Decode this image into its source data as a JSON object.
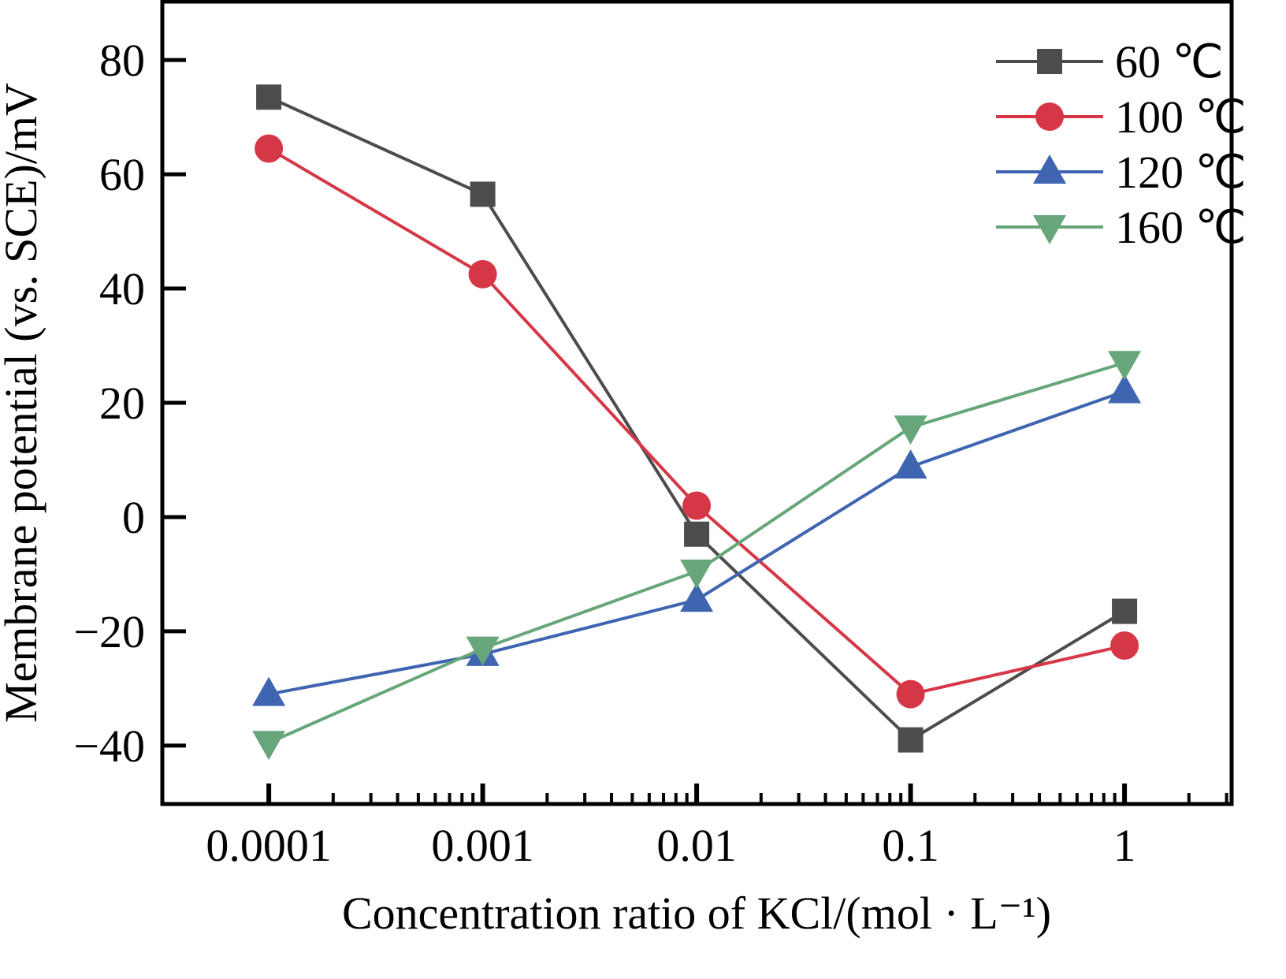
{
  "chart_data": {
    "type": "line",
    "title": "",
    "xlabel": "Concentration ratio of KCl/(mol · L⁻¹)",
    "ylabel": "Membrane potential (vs. SCE)/mV",
    "x_scale": "log",
    "x": [
      0.0001,
      0.001,
      0.01,
      0.1,
      1
    ],
    "x_tick_labels": [
      "0.0001",
      "0.001",
      "0.01",
      "0.1",
      "1"
    ],
    "xlim_log10": [
      -4.505,
      0.508
    ],
    "ylim": [
      -50.5,
      90.5
    ],
    "y_ticks": [
      80,
      60,
      40,
      20,
      0,
      -20,
      -40
    ],
    "y_tick_labels": [
      "80",
      "60",
      "40",
      "20",
      "0",
      "−20",
      "−40"
    ],
    "grid": false,
    "legend_position": "top-right",
    "series": [
      {
        "name": "60 ℃",
        "color": "#4d4b4c",
        "marker": "square",
        "values": [
          73.5,
          56.5,
          -3,
          -39,
          -16.5
        ]
      },
      {
        "name": "100 ℃",
        "color": "#d63746",
        "marker": "circle",
        "values": [
          64.5,
          42.5,
          2,
          -31,
          -22.5
        ]
      },
      {
        "name": "120 ℃",
        "color": "#3f65b1",
        "marker": "triangle-up",
        "values": [
          -31,
          -24,
          -14.5,
          8.8,
          22
        ]
      },
      {
        "name": "160 ℃",
        "color": "#67a67a",
        "marker": "triangle-down",
        "values": [
          -39.5,
          -23,
          -9.5,
          15.7,
          27
        ]
      }
    ]
  }
}
